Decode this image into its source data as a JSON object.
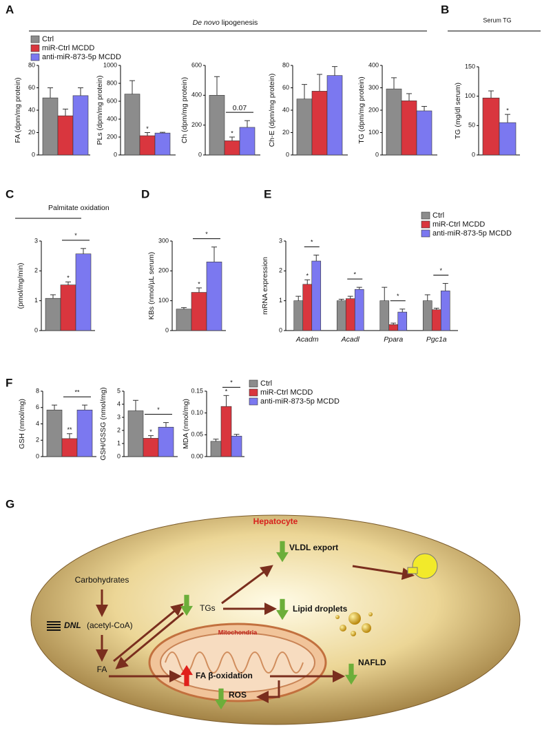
{
  "panel_labels": [
    "A",
    "B",
    "C",
    "D",
    "E",
    "F",
    "G"
  ],
  "lipogenesis_title": {
    "italic": "De novo",
    "rest": "lipogenesis"
  },
  "chart_data": [
    {
      "type": "bar",
      "ylabel": "FA (dpm/mg protein)",
      "ylim": [
        0,
        80
      ],
      "yticks": [
        0,
        20,
        40,
        60,
        80
      ],
      "series": [
        {
          "name": "Ctrl",
          "color": "#8c8c8c",
          "values": [
            51
          ],
          "errors": [
            9
          ]
        },
        {
          "name": "miR-Ctrl MCDD",
          "color": "#d9363e",
          "values": [
            35
          ],
          "errors": [
            6
          ]
        },
        {
          "name": "anti-miR-873-5p MCDD",
          "color": "#7b78f0",
          "values": [
            53
          ],
          "errors": [
            7
          ]
        }
      ],
      "annotations": []
    },
    {
      "type": "bar",
      "ylabel": "PLs (dpm/mg protein)",
      "ylim": [
        0,
        1000
      ],
      "yticks": [
        0,
        200,
        400,
        600,
        800,
        1000
      ],
      "series": [
        {
          "color": "#8c8c8c",
          "values": [
            680
          ],
          "errors": [
            150
          ]
        },
        {
          "color": "#d9363e",
          "values": [
            215
          ],
          "errors": [
            35
          ]
        },
        {
          "color": "#7b78f0",
          "values": [
            245
          ],
          "errors": [
            8
          ]
        }
      ],
      "annotations": [
        {
          "label": "*",
          "series": 1
        }
      ]
    },
    {
      "type": "bar",
      "ylabel": "Ch (dpm/mg protein)",
      "ylim": [
        0,
        600
      ],
      "yticks": [
        0,
        200,
        400,
        600
      ],
      "series": [
        {
          "color": "#8c8c8c",
          "values": [
            400
          ],
          "errors": [
            125
          ]
        },
        {
          "color": "#d9363e",
          "values": [
            95
          ],
          "errors": [
            25
          ]
        },
        {
          "color": "#7b78f0",
          "values": [
            185
          ],
          "errors": [
            45
          ]
        }
      ],
      "annotations": [
        {
          "label": "*",
          "series": 1
        },
        {
          "label": "0.07",
          "from": 1,
          "to": 2
        }
      ]
    },
    {
      "type": "bar",
      "ylabel": "Ch-E (dpm/mg protein)",
      "ylim": [
        0,
        80
      ],
      "yticks": [
        0,
        20,
        40,
        60,
        80
      ],
      "series": [
        {
          "color": "#8c8c8c",
          "values": [
            50
          ],
          "errors": [
            13
          ]
        },
        {
          "color": "#d9363e",
          "values": [
            57
          ],
          "errors": [
            15
          ]
        },
        {
          "color": "#7b78f0",
          "values": [
            71
          ],
          "errors": [
            8
          ]
        }
      ],
      "annotations": []
    },
    {
      "type": "bar",
      "ylabel": "TG (dpm/mg protein)",
      "ylim": [
        0,
        400
      ],
      "yticks": [
        0,
        100,
        200,
        300,
        400
      ],
      "series": [
        {
          "color": "#8c8c8c",
          "values": [
            295
          ],
          "errors": [
            50
          ]
        },
        {
          "color": "#d9363e",
          "values": [
            242
          ],
          "errors": [
            32
          ]
        },
        {
          "color": "#7b78f0",
          "values": [
            197
          ],
          "errors": [
            20
          ]
        }
      ],
      "annotations": []
    },
    {
      "type": "bar",
      "title": "Serum TG",
      "ylabel": "TG (mg/dl serum)",
      "ylim": [
        0,
        150
      ],
      "yticks": [
        0,
        50,
        100,
        150
      ],
      "series": [
        {
          "color": "#d9363e",
          "values": [
            97
          ],
          "errors": [
            12
          ]
        },
        {
          "color": "#7b78f0",
          "values": [
            55
          ],
          "errors": [
            14
          ]
        }
      ],
      "annotations": [
        {
          "label": "*",
          "series": 1
        }
      ]
    },
    {
      "type": "bar",
      "title": "Palmitate oxidation",
      "ylabel": "(pmol/mg/min)",
      "ylim": [
        0,
        3
      ],
      "yticks": [
        0,
        1,
        2,
        3
      ],
      "series": [
        {
          "color": "#8c8c8c",
          "values": [
            1.08
          ],
          "errors": [
            0.12
          ]
        },
        {
          "color": "#d9363e",
          "values": [
            1.53
          ],
          "errors": [
            0.1
          ]
        },
        {
          "color": "#7b78f0",
          "values": [
            2.57
          ],
          "errors": [
            0.18
          ]
        }
      ],
      "annotations": [
        {
          "label": "*",
          "series": 1
        },
        {
          "label": "*",
          "from": 1,
          "to": 2
        }
      ]
    },
    {
      "type": "bar",
      "ylabel": "KBs (nmol/µL serum)",
      "ylim": [
        0,
        300
      ],
      "yticks": [
        0,
        100,
        200,
        300
      ],
      "series": [
        {
          "color": "#8c8c8c",
          "values": [
            72
          ],
          "errors": [
            5
          ]
        },
        {
          "color": "#d9363e",
          "values": [
            128
          ],
          "errors": [
            15
          ]
        },
        {
          "color": "#7b78f0",
          "values": [
            230
          ],
          "errors": [
            50
          ]
        }
      ],
      "annotations": [
        {
          "label": "*",
          "series": 1
        },
        {
          "label": "*",
          "from": 1,
          "to": 2
        }
      ]
    },
    {
      "type": "bar",
      "ylabel": "mRNA expression",
      "ylim": [
        0,
        3
      ],
      "yticks": [
        0,
        1,
        2,
        3
      ],
      "categories": [
        "Acadm",
        "Acadl",
        "Ppara",
        "Pgc1a"
      ],
      "series": [
        {
          "name": "Ctrl",
          "color": "#8c8c8c",
          "values": [
            1.0,
            1.0,
            1.0,
            1.0
          ],
          "errors": [
            0.15,
            0.05,
            0.45,
            0.2
          ]
        },
        {
          "name": "miR-Ctrl MCDD",
          "color": "#d9363e",
          "values": [
            1.55,
            1.07,
            0.2,
            0.7
          ],
          "errors": [
            0.15,
            0.08,
            0.05,
            0.05
          ]
        },
        {
          "name": "anti-miR-873-5p MCDD",
          "color": "#7b78f0",
          "values": [
            2.33,
            1.38,
            0.62,
            1.33
          ],
          "errors": [
            0.2,
            0.07,
            0.1,
            0.25
          ]
        }
      ],
      "annotations": [
        {
          "label": "*",
          "series": 1,
          "category": 0
        },
        {
          "label": "*",
          "from": 1,
          "to": 2,
          "category": 0
        },
        {
          "label": "*",
          "from": 1,
          "to": 2,
          "category": 1
        },
        {
          "label": "*",
          "from": 1,
          "to": 2,
          "category": 2
        },
        {
          "label": "*",
          "from": 1,
          "to": 2,
          "category": 3
        }
      ]
    },
    {
      "type": "bar",
      "ylabel": "GSH (nmol/mg)",
      "ylim": [
        0,
        8
      ],
      "yticks": [
        0,
        2,
        4,
        6,
        8
      ],
      "series": [
        {
          "color": "#8c8c8c",
          "values": [
            5.7
          ],
          "errors": [
            0.6
          ]
        },
        {
          "color": "#d9363e",
          "values": [
            2.2
          ],
          "errors": [
            0.6
          ]
        },
        {
          "color": "#7b78f0",
          "values": [
            5.7
          ],
          "errors": [
            0.6
          ]
        }
      ],
      "annotations": [
        {
          "label": "**",
          "series": 1
        },
        {
          "label": "**",
          "from": 1,
          "to": 2
        }
      ]
    },
    {
      "type": "bar",
      "ylabel": "GSH/GSSG (nmol/mg)",
      "ylim": [
        0,
        5
      ],
      "yticks": [
        0,
        1,
        2,
        3,
        4,
        5
      ],
      "series": [
        {
          "color": "#8c8c8c",
          "values": [
            3.5
          ],
          "errors": [
            0.8
          ]
        },
        {
          "color": "#d9363e",
          "values": [
            1.4
          ],
          "errors": [
            0.2
          ]
        },
        {
          "color": "#7b78f0",
          "values": [
            2.25
          ],
          "errors": [
            0.35
          ]
        }
      ],
      "annotations": [
        {
          "label": "*",
          "series": 1
        },
        {
          "label": "*",
          "from": 1,
          "to": 2
        }
      ]
    },
    {
      "type": "bar",
      "ylabel": "MDA (nmol/mg)",
      "ylim": [
        0,
        0.15
      ],
      "yticks": [
        {
          "value": 0,
          "label": "0.00"
        },
        0.05,
        {
          "value": 0.1,
          "label": "0.10"
        },
        0.15
      ],
      "series": [
        {
          "name": "Ctrl",
          "color": "#8c8c8c",
          "values": [
            0.035
          ],
          "errors": [
            0.005
          ]
        },
        {
          "name": "miR-Ctrl MCDD",
          "color": "#d9363e",
          "values": [
            0.115
          ],
          "errors": [
            0.025
          ]
        },
        {
          "name": "anti-miR-873-5p MCDD",
          "color": "#7b78f0",
          "values": [
            0.047
          ],
          "errors": [
            0.004
          ]
        }
      ],
      "annotations": [
        {
          "label": "*",
          "series": 1
        },
        {
          "label": "*",
          "from": 1,
          "to": 2
        }
      ]
    }
  ],
  "diagram": {
    "cell": "Hepatocyte",
    "carbohydrates": "Carbohydrates",
    "dnl": "DNL",
    "acetyl": "(acetyl-CoA)",
    "fa": "FA",
    "tgs": "TGs",
    "vldl": "VLDL export",
    "droplets": "Lipid droplets",
    "mito": "Mitochondria",
    "beta": "FA β-oxidation",
    "ros": "ROS",
    "nafld": "NAFLD"
  }
}
